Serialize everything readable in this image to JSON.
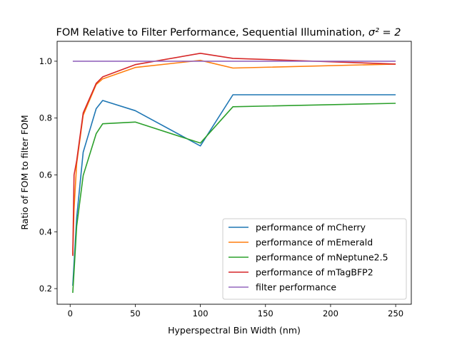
{
  "chart_data": {
    "type": "line",
    "title": "FOM Relative to Filter Performance, Sequential Illumination, ",
    "title_math": "σ² = 2",
    "xlabel": "Hyperspectral Bin Width (nm)",
    "ylabel": "Ratio of FOM to filter FOM",
    "xlim": [
      -10,
      262
    ],
    "ylim": [
      0.145,
      1.07
    ],
    "xticks": [
      0,
      50,
      100,
      150,
      200,
      250
    ],
    "yticks": [
      0.2,
      0.4,
      0.6,
      0.8,
      1.0
    ],
    "xtick_labels": [
      "0",
      "50",
      "100",
      "150",
      "200",
      "250"
    ],
    "ytick_labels": [
      "0.2",
      "0.4",
      "0.6",
      "0.8",
      "1.0"
    ],
    "grid": false,
    "legend_position": "lower-right",
    "series": [
      {
        "name": "performance of mCherry",
        "color": "#1f77b4",
        "x": [
          2,
          3,
          5,
          10,
          20,
          25,
          50,
          100,
          125,
          250
        ],
        "y": [
          0.21,
          0.29,
          0.45,
          0.68,
          0.833,
          0.862,
          0.826,
          0.702,
          0.882,
          0.882
        ]
      },
      {
        "name": "performance of mEmerald",
        "color": "#ff7f0e",
        "x": [
          2,
          3,
          5,
          10,
          20,
          25,
          50,
          100,
          125,
          250
        ],
        "y": [
          0.32,
          0.48,
          0.64,
          0.81,
          0.918,
          0.938,
          0.978,
          1.003,
          0.976,
          0.99
        ]
      },
      {
        "name": "performance of mNeptune2.5",
        "color": "#2ca02c",
        "x": [
          2,
          3,
          5,
          10,
          20,
          25,
          50,
          100,
          125,
          250
        ],
        "y": [
          0.185,
          0.26,
          0.42,
          0.598,
          0.745,
          0.78,
          0.786,
          0.712,
          0.84,
          0.852
        ]
      },
      {
        "name": "performance of mTagBFP2",
        "color": "#d62728",
        "x": [
          2,
          3,
          5,
          10,
          20,
          25,
          50,
          100,
          125,
          250
        ],
        "y": [
          0.315,
          0.6,
          0.65,
          0.818,
          0.922,
          0.945,
          0.988,
          1.028,
          1.01,
          0.99
        ]
      },
      {
        "name": "filter performance",
        "color": "#9467bd",
        "x": [
          2,
          250
        ],
        "y": [
          1.0,
          1.0
        ]
      }
    ]
  }
}
